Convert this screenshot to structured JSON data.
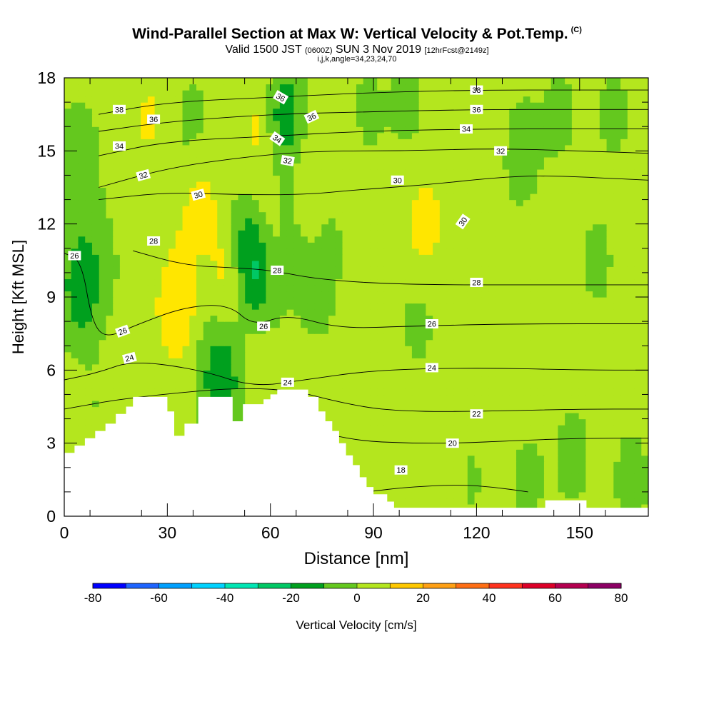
{
  "title": {
    "main": "Wind-Parallel Section at Max W: Vertical Velocity & Pot.Temp.",
    "copyright": "(C)",
    "valid_prefix": "Valid 1500 JST",
    "valid_utc": "(0600Z)",
    "valid_date": "SUN 3 Nov 2019",
    "forecast": "[12hrFcst@2149z]",
    "params": "i,j,k,angle=34,23,24,70"
  },
  "chart_data": {
    "type": "heatmap",
    "title": "Wind-Parallel Section at Max W: Vertical Velocity & Pot.Temp.",
    "xlabel": "Distance [nm]",
    "ylabel": "Height [Kft MSL]",
    "xlim": [
      0,
      170
    ],
    "ylim": [
      0,
      18
    ],
    "xticks": [
      0,
      30,
      60,
      90,
      120,
      150
    ],
    "yticks": [
      0,
      3,
      6,
      9,
      12,
      15,
      18
    ],
    "colorbar": {
      "label": "Vertical Velocity [cm/s]",
      "min": -80,
      "max": 80,
      "step": 10,
      "tick_labels": [
        -80,
        -60,
        -40,
        -20,
        0,
        20,
        40,
        60,
        80
      ],
      "colors": [
        "#0000ff",
        "#1e64ff",
        "#00a0ff",
        "#00d2ff",
        "#00e6b4",
        "#00c864",
        "#00a01e",
        "#64c81e",
        "#b4e61e",
        "#ffe600",
        "#ffc800",
        "#ffa014",
        "#ff6e14",
        "#ff321e",
        "#dc0028",
        "#b40050",
        "#8c0064",
        "#64008c"
      ]
    },
    "terrain_kft": [
      [
        0,
        2.6
      ],
      [
        3,
        2.6
      ],
      [
        3,
        2.9
      ],
      [
        6,
        2.9
      ],
      [
        6,
        3.2
      ],
      [
        9,
        3.2
      ],
      [
        9,
        3.5
      ],
      [
        12,
        3.5
      ],
      [
        12,
        3.8
      ],
      [
        15,
        3.8
      ],
      [
        15,
        4.2
      ],
      [
        18,
        4.2
      ],
      [
        18,
        4.5
      ],
      [
        20,
        4.5
      ],
      [
        20,
        4.9
      ],
      [
        30,
        4.9
      ],
      [
        30,
        4.3
      ],
      [
        32,
        4.3
      ],
      [
        32,
        3.3
      ],
      [
        35,
        3.3
      ],
      [
        35,
        3.8
      ],
      [
        39,
        3.8
      ],
      [
        39,
        4.9
      ],
      [
        49,
        4.9
      ],
      [
        49,
        3.9
      ],
      [
        52,
        3.9
      ],
      [
        52,
        4.6
      ],
      [
        58,
        4.6
      ],
      [
        58,
        4.8
      ],
      [
        60,
        4.8
      ],
      [
        60,
        5.0
      ],
      [
        62,
        5.0
      ],
      [
        62,
        5.2
      ],
      [
        71,
        5.2
      ],
      [
        71,
        4.9
      ],
      [
        74,
        4.9
      ],
      [
        74,
        4.3
      ],
      [
        76,
        4.3
      ],
      [
        76,
        3.9
      ],
      [
        78,
        3.9
      ],
      [
        78,
        3.5
      ],
      [
        80,
        3.5
      ],
      [
        80,
        3.0
      ],
      [
        82,
        3.0
      ],
      [
        82,
        2.5
      ],
      [
        84,
        2.5
      ],
      [
        84,
        2.1
      ],
      [
        86,
        2.1
      ],
      [
        86,
        1.6
      ],
      [
        88,
        1.6
      ],
      [
        88,
        1.2
      ],
      [
        90,
        1.2
      ],
      [
        90,
        0.9
      ],
      [
        94,
        0.9
      ],
      [
        94,
        0.6
      ],
      [
        96,
        0.6
      ],
      [
        96,
        0.35
      ],
      [
        140,
        0.35
      ],
      [
        140,
        0.65
      ],
      [
        152,
        0.65
      ],
      [
        152,
        0.35
      ],
      [
        170,
        0.35
      ]
    ],
    "w_features_cm_s": [
      {
        "x": 5,
        "y": 9.5,
        "w": -22
      },
      {
        "x": 4,
        "y": 14.5,
        "w": -12
      },
      {
        "x": 12,
        "y": 11.0,
        "w": -5
      },
      {
        "x": 20,
        "y": 13.0,
        "w": 6
      },
      {
        "x": 25,
        "y": 16.5,
        "w": 8
      },
      {
        "x": 30,
        "y": 8.5,
        "w": 7
      },
      {
        "x": 35,
        "y": 8.0,
        "w": 10
      },
      {
        "x": 34,
        "y": 11.0,
        "w": 5
      },
      {
        "x": 37,
        "y": 16.0,
        "w": -6
      },
      {
        "x": 40,
        "y": 13.0,
        "w": 10
      },
      {
        "x": 40,
        "y": 7.0,
        "w": -5
      },
      {
        "x": 46,
        "y": 5.5,
        "w": -22
      },
      {
        "x": 48,
        "y": 10.0,
        "w": 12
      },
      {
        "x": 50,
        "y": 16.0,
        "w": -8
      },
      {
        "x": 53,
        "y": 11.5,
        "w": -12
      },
      {
        "x": 55,
        "y": 10.0,
        "w": -22
      },
      {
        "x": 57,
        "y": 11.5,
        "w": 5
      },
      {
        "x": 57,
        "y": 6.0,
        "w": 8
      },
      {
        "x": 52,
        "y": 15.5,
        "w": 10
      },
      {
        "x": 58,
        "y": 16.5,
        "w": 8
      },
      {
        "x": 62,
        "y": 12.0,
        "w": 5
      },
      {
        "x": 64,
        "y": 16.5,
        "w": -22
      },
      {
        "x": 66,
        "y": 12.0,
        "w": -12
      },
      {
        "x": 70,
        "y": 13.0,
        "w": 10
      },
      {
        "x": 72,
        "y": 9.0,
        "w": -8
      },
      {
        "x": 70,
        "y": 7.0,
        "w": 3
      },
      {
        "x": 77,
        "y": 11.5,
        "w": -5
      },
      {
        "x": 80,
        "y": 15.0,
        "w": 5
      },
      {
        "x": 88,
        "y": 16.5,
        "w": -5
      },
      {
        "x": 100,
        "y": 17.0,
        "w": -6
      },
      {
        "x": 105,
        "y": 12.0,
        "w": 12
      },
      {
        "x": 103,
        "y": 8.0,
        "w": -5
      },
      {
        "x": 112,
        "y": 16.5,
        "w": 4
      },
      {
        "x": 120,
        "y": 10.0,
        "w": 2
      },
      {
        "x": 123,
        "y": 16.5,
        "w": 5
      },
      {
        "x": 133,
        "y": 15.0,
        "w": -8
      },
      {
        "x": 144,
        "y": 16.5,
        "w": -5
      },
      {
        "x": 155,
        "y": 10.5,
        "w": -5
      },
      {
        "x": 160,
        "y": 16.5,
        "w": -5
      },
      {
        "x": 148,
        "y": 2.5,
        "w": -6
      },
      {
        "x": 135,
        "y": 1.5,
        "w": -5
      },
      {
        "x": 118,
        "y": 1.5,
        "w": -4
      },
      {
        "x": 110,
        "y": 1.2,
        "w": 3
      },
      {
        "x": 100,
        "y": 1.2,
        "w": -3
      },
      {
        "x": 165,
        "y": 1.5,
        "w": -6
      },
      {
        "x": 10,
        "y": 4.5,
        "w": -3
      },
      {
        "x": 60,
        "y": 8.5,
        "w": -4
      },
      {
        "x": 82,
        "y": 6.5,
        "w": -2
      }
    ],
    "theta_contours_c": [
      {
        "level": 18,
        "points": [
          [
            88,
            1.0
          ],
          [
            100,
            1.2
          ],
          [
            115,
            1.3
          ],
          [
            125,
            1.2
          ],
          [
            135,
            1.0
          ]
        ]
      },
      {
        "level": 20,
        "points": [
          [
            70,
            3.6
          ],
          [
            85,
            3.1
          ],
          [
            100,
            3.0
          ],
          [
            115,
            3.0
          ],
          [
            130,
            3.1
          ],
          [
            150,
            3.2
          ],
          [
            170,
            3.2
          ]
        ]
      },
      {
        "level": 22,
        "points": [
          [
            0,
            4.4
          ],
          [
            20,
            4.9
          ],
          [
            60,
            5.4
          ],
          [
            85,
            4.5
          ],
          [
            100,
            4.3
          ],
          [
            120,
            4.3
          ],
          [
            150,
            4.4
          ],
          [
            170,
            4.4
          ]
        ]
      },
      {
        "level": 24,
        "points": [
          [
            0,
            5.6
          ],
          [
            10,
            5.9
          ],
          [
            20,
            6.4
          ],
          [
            40,
            6.0
          ],
          [
            55,
            5.3
          ],
          [
            70,
            5.6
          ],
          [
            90,
            6.0
          ],
          [
            120,
            6.1
          ],
          [
            150,
            6.0
          ],
          [
            170,
            6.0
          ]
        ]
      },
      {
        "level": 26,
        "points": [
          [
            0,
            10.8
          ],
          [
            5,
            10.5
          ],
          [
            8,
            8.0
          ],
          [
            12,
            7.3
          ],
          [
            20,
            7.8
          ],
          [
            35,
            8.6
          ],
          [
            48,
            8.7
          ],
          [
            55,
            7.8
          ],
          [
            65,
            8.3
          ],
          [
            80,
            7.7
          ],
          [
            100,
            7.8
          ],
          [
            130,
            7.9
          ],
          [
            170,
            7.9
          ]
        ]
      },
      {
        "level": 28,
        "points": [
          [
            20,
            10.9
          ],
          [
            35,
            10.3
          ],
          [
            50,
            10.2
          ],
          [
            60,
            10.1
          ],
          [
            75,
            9.7
          ],
          [
            100,
            9.5
          ],
          [
            140,
            9.5
          ],
          [
            170,
            9.5
          ]
        ]
      },
      {
        "level": 30,
        "points": [
          [
            10,
            13.0
          ],
          [
            30,
            13.3
          ],
          [
            50,
            13.2
          ],
          [
            70,
            13.2
          ],
          [
            85,
            13.4
          ],
          [
            105,
            13.6
          ],
          [
            125,
            13.9
          ],
          [
            140,
            14.0
          ],
          [
            170,
            13.8
          ]
        ]
      },
      {
        "level": 32,
        "points": [
          [
            10,
            13.5
          ],
          [
            30,
            14.3
          ],
          [
            55,
            14.8
          ],
          [
            75,
            15.0
          ],
          [
            100,
            15.0
          ],
          [
            125,
            15.1
          ],
          [
            150,
            15.0
          ],
          [
            170,
            14.9
          ]
        ]
      },
      {
        "level": 34,
        "points": [
          [
            10,
            14.8
          ],
          [
            30,
            15.4
          ],
          [
            60,
            15.6
          ],
          [
            85,
            15.8
          ],
          [
            120,
            15.9
          ],
          [
            150,
            15.9
          ],
          [
            170,
            15.9
          ]
        ]
      },
      {
        "level": 36,
        "points": [
          [
            10,
            15.8
          ],
          [
            30,
            16.2
          ],
          [
            60,
            16.5
          ],
          [
            85,
            16.6
          ],
          [
            120,
            16.7
          ],
          [
            150,
            16.7
          ],
          [
            170,
            16.7
          ]
        ]
      },
      {
        "level": 38,
        "points": [
          [
            10,
            16.5
          ],
          [
            30,
            17.0
          ],
          [
            60,
            17.2
          ],
          [
            90,
            17.4
          ],
          [
            120,
            17.5
          ],
          [
            150,
            17.5
          ],
          [
            170,
            17.5
          ]
        ]
      }
    ],
    "contour_labels": [
      {
        "text": "38",
        "x": 16,
        "y": 16.7,
        "rot": 0
      },
      {
        "text": "36",
        "x": 26,
        "y": 16.3,
        "rot": 0
      },
      {
        "text": "34",
        "x": 16,
        "y": 15.2,
        "rot": 0
      },
      {
        "text": "32",
        "x": 23,
        "y": 14.0,
        "rot": -15
      },
      {
        "text": "30",
        "x": 39,
        "y": 13.2,
        "rot": -15
      },
      {
        "text": "28",
        "x": 26,
        "y": 11.3,
        "rot": 0
      },
      {
        "text": "26",
        "x": 3,
        "y": 10.7,
        "rot": 0
      },
      {
        "text": "26",
        "x": 17,
        "y": 7.6,
        "rot": -20
      },
      {
        "text": "24",
        "x": 19,
        "y": 6.5,
        "rot": -15
      },
      {
        "text": "36",
        "x": 63,
        "y": 17.2,
        "rot": 30
      },
      {
        "text": "36",
        "x": 72,
        "y": 16.4,
        "rot": -25
      },
      {
        "text": "34",
        "x": 62,
        "y": 15.5,
        "rot": 35
      },
      {
        "text": "32",
        "x": 65,
        "y": 14.6,
        "rot": 10
      },
      {
        "text": "28",
        "x": 62,
        "y": 10.1,
        "rot": 0
      },
      {
        "text": "26",
        "x": 58,
        "y": 7.8,
        "rot": 0
      },
      {
        "text": "24",
        "x": 65,
        "y": 5.5,
        "rot": 0
      },
      {
        "text": "30",
        "x": 97,
        "y": 13.8,
        "rot": 0
      },
      {
        "text": "38",
        "x": 120,
        "y": 17.5,
        "rot": 0
      },
      {
        "text": "36",
        "x": 120,
        "y": 16.7,
        "rot": 0
      },
      {
        "text": "34",
        "x": 117,
        "y": 15.9,
        "rot": 0
      },
      {
        "text": "32",
        "x": 127,
        "y": 15.0,
        "rot": 0
      },
      {
        "text": "30",
        "x": 116,
        "y": 12.1,
        "rot": -55
      },
      {
        "text": "28",
        "x": 120,
        "y": 9.6,
        "rot": 0
      },
      {
        "text": "26",
        "x": 107,
        "y": 7.9,
        "rot": 0
      },
      {
        "text": "24",
        "x": 107,
        "y": 6.1,
        "rot": 0
      },
      {
        "text": "22",
        "x": 120,
        "y": 4.2,
        "rot": 0
      },
      {
        "text": "20",
        "x": 113,
        "y": 3.0,
        "rot": 0
      },
      {
        "text": "18",
        "x": 98,
        "y": 1.9,
        "rot": 0
      }
    ]
  }
}
